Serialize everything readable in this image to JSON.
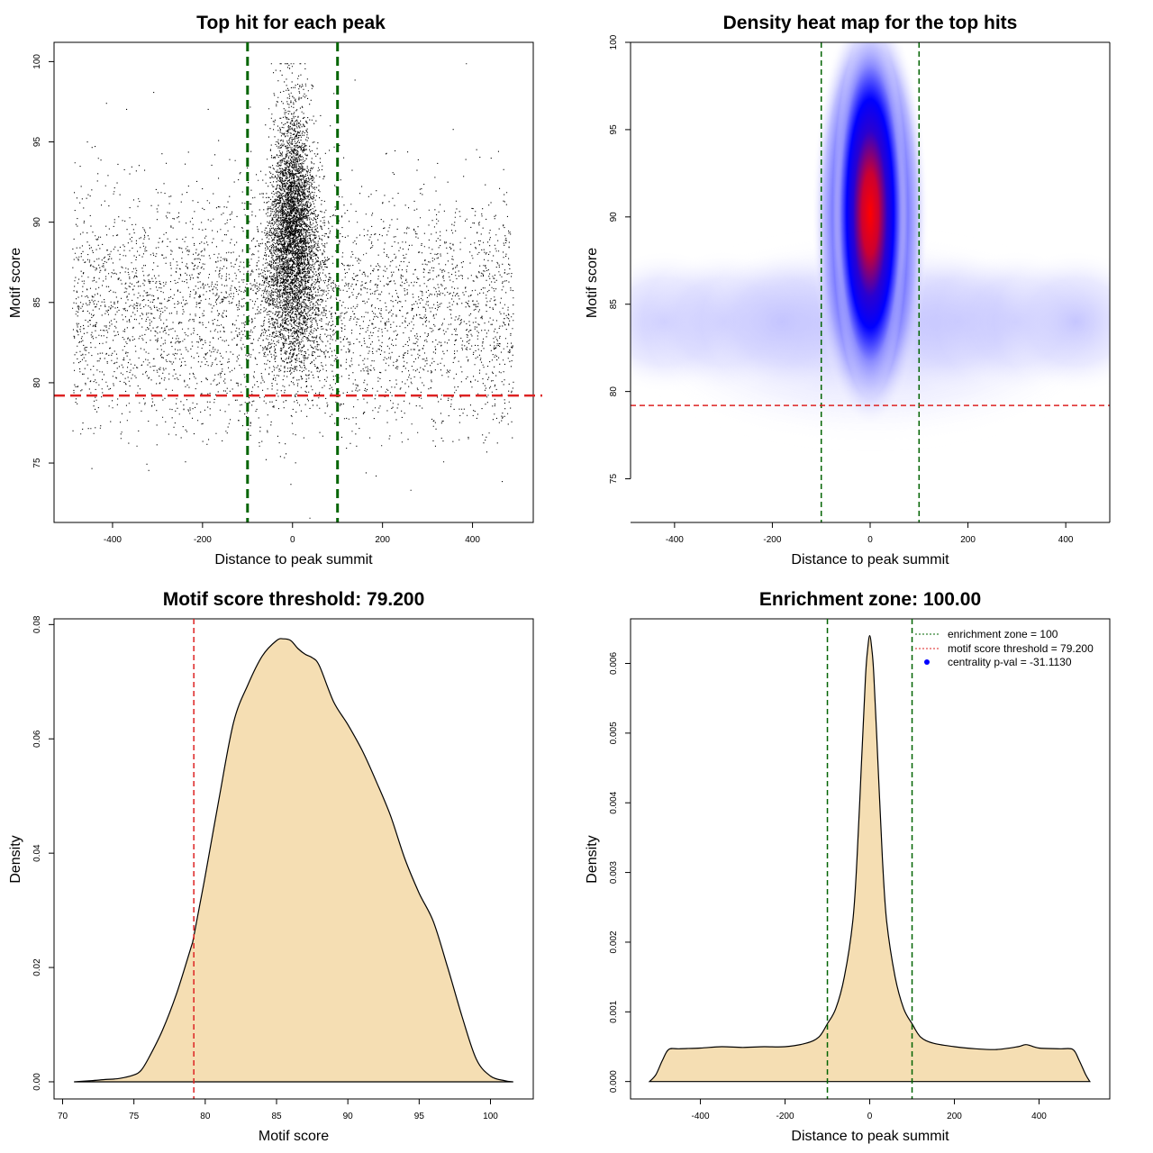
{
  "colors": {
    "points": "#000000",
    "enrichment_line": "#006400",
    "threshold_line": "#dd2222",
    "density_fill": "#f5deb3",
    "heat_low": "#ffffff",
    "heat_mid": "#0000ff",
    "heat_high": "#ff0000",
    "legend_dot": "#0000ff"
  },
  "chart_data": [
    {
      "type": "scatter",
      "title": "Top hit for each peak",
      "xlabel": "Distance to peak summit",
      "ylabel": "Motif score",
      "xlim": [
        -530,
        535
      ],
      "ylim": [
        71.3,
        101.2
      ],
      "xticks": [
        -400,
        -200,
        0,
        200,
        400
      ],
      "yticks": [
        75,
        80,
        85,
        90,
        95,
        100
      ],
      "n_points_background": 10000,
      "n_points_central": 8000,
      "background_x_range": [
        -490,
        490
      ],
      "background_score_mean": 84.5,
      "central_x_sd": 30,
      "central_score_mean": 89,
      "vlines": [
        -100,
        100
      ],
      "hline": 79.2
    },
    {
      "type": "heatmap",
      "title": "Density heat map for the top hits",
      "xlabel": "Distance to peak summit",
      "ylabel": "Motif score",
      "xlim": [
        -490,
        490
      ],
      "ylim": [
        72.5,
        100
      ],
      "xticks": [
        -400,
        -200,
        0,
        200,
        400
      ],
      "yticks": [
        75,
        80,
        85,
        90,
        95,
        100
      ],
      "peak_center": [
        0,
        90.5
      ],
      "vlines": [
        -100,
        100
      ],
      "hline": 79.2
    },
    {
      "type": "area",
      "title": "Motif score threshold: 79.200",
      "xlabel": "Motif score",
      "ylabel": "Density",
      "xlim": [
        69.4,
        103.0
      ],
      "ylim": [
        -0.003,
        0.081
      ],
      "xticks": [
        70,
        75,
        80,
        85,
        90,
        95,
        100
      ],
      "yticks": [
        0.0,
        0.02,
        0.04,
        0.06,
        0.08
      ],
      "ytick_labels": [
        "0.00",
        "0.02",
        "0.04",
        "0.06",
        "0.08"
      ],
      "x": [
        70.8,
        72,
        73,
        74,
        75,
        75.5,
        76,
        77,
        78,
        79,
        79.2,
        80,
        81,
        82,
        83,
        84,
        85,
        85.5,
        86,
        86.5,
        87,
        87.5,
        88,
        89,
        90,
        91,
        92,
        93,
        94,
        95,
        96,
        97,
        98,
        99,
        100,
        101,
        101.6
      ],
      "values": [
        0.0,
        0.0002,
        0.0004,
        0.0006,
        0.0012,
        0.002,
        0.004,
        0.009,
        0.0155,
        0.0235,
        0.0255,
        0.036,
        0.05,
        0.063,
        0.0695,
        0.0745,
        0.0772,
        0.0775,
        0.0772,
        0.0758,
        0.0748,
        0.0742,
        0.0728,
        0.0665,
        0.0625,
        0.058,
        0.0525,
        0.0465,
        0.039,
        0.033,
        0.028,
        0.02,
        0.0115,
        0.004,
        0.001,
        0.0002,
        0.0
      ],
      "vline": 79.2
    },
    {
      "type": "area",
      "title": "Enrichment zone: 100.00",
      "xlabel": "Distance to peak summit",
      "ylabel": "Density",
      "xlim": [
        -565,
        567
      ],
      "ylim": [
        -0.00025,
        0.00664
      ],
      "xticks": [
        -400,
        -200,
        0,
        200,
        400
      ],
      "yticks": [
        0.0,
        0.001,
        0.002,
        0.003,
        0.004,
        0.005,
        0.006
      ],
      "ytick_labels": [
        "0.000",
        "0.001",
        "0.002",
        "0.003",
        "0.004",
        "0.005",
        "0.006"
      ],
      "x": [
        -520,
        -505,
        -490,
        -475,
        -450,
        -400,
        -350,
        -300,
        -250,
        -200,
        -150,
        -120,
        -100,
        -80,
        -60,
        -40,
        -30,
        -20,
        -10,
        -5,
        0,
        5,
        10,
        20,
        30,
        40,
        60,
        80,
        100,
        120,
        150,
        200,
        250,
        300,
        350,
        370,
        400,
        450,
        480,
        495,
        510,
        520
      ],
      "values": [
        0.0,
        0.0001,
        0.0003,
        0.00046,
        0.00047,
        0.00048,
        0.0005,
        0.00049,
        0.0005,
        0.0005,
        0.00055,
        0.00064,
        0.00083,
        0.00105,
        0.0015,
        0.0023,
        0.0032,
        0.0045,
        0.0058,
        0.0062,
        0.0064,
        0.0062,
        0.0058,
        0.0045,
        0.0032,
        0.0023,
        0.0015,
        0.00105,
        0.00083,
        0.00064,
        0.00055,
        0.0005,
        0.00047,
        0.00046,
        0.0005,
        0.00053,
        0.00048,
        0.00047,
        0.00046,
        0.0003,
        0.0001,
        0.0
      ],
      "vlines": [
        -100,
        100
      ],
      "legend": {
        "entries": [
          "enrichment zone = 100",
          "motif score threshold = 79.200",
          "centrality p-val = -31.1130"
        ],
        "placement": "top-right"
      }
    }
  ]
}
